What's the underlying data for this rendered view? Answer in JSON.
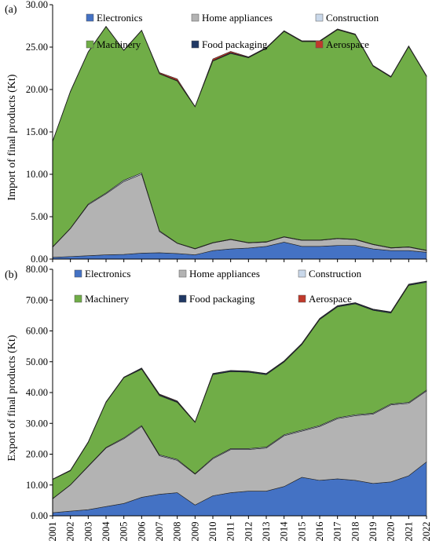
{
  "chart_data": [
    {
      "type": "area",
      "stacked": true,
      "panel_label": "(a)",
      "ylabel": "Import of final products  (Kt)",
      "xlabel": "",
      "ylim": [
        0,
        30
      ],
      "yticks": [
        "0.00",
        "5.00",
        "10.00",
        "15.00",
        "20.00",
        "25.00",
        "30.00"
      ],
      "legend_position": "top",
      "x": [
        2001,
        2002,
        2003,
        2004,
        2005,
        2006,
        2007,
        2008,
        2009,
        2010,
        2011,
        2012,
        2013,
        2014,
        2015,
        2016,
        2017,
        2018,
        2019,
        2020,
        2021,
        2022
      ],
      "series": [
        {
          "name": "Electronics",
          "color": "#4472c4",
          "values": [
            0.2,
            0.3,
            0.4,
            0.5,
            0.55,
            0.7,
            0.75,
            0.65,
            0.5,
            1.0,
            1.2,
            1.3,
            1.5,
            2.0,
            1.5,
            1.5,
            1.6,
            1.6,
            1.2,
            1.0,
            1.0,
            0.8
          ]
        },
        {
          "name": "Home appliances",
          "color": "#b3b3b3",
          "values": [
            1.2,
            3.3,
            6.0,
            7.2,
            8.6,
            9.3,
            2.5,
            1.2,
            0.7,
            0.9,
            1.1,
            0.6,
            0.5,
            0.6,
            0.7,
            0.7,
            0.8,
            0.7,
            0.5,
            0.3,
            0.4,
            0.2
          ]
        },
        {
          "name": "Construction",
          "color": "#c9d8ea",
          "values": [
            0.05,
            0.05,
            0.1,
            0.1,
            0.15,
            0.15,
            0.1,
            0.05,
            0.05,
            0.05,
            0.05,
            0.05,
            0.05,
            0.05,
            0.05,
            0.05,
            0.05,
            0.05,
            0.05,
            0.05,
            0.05,
            0.05
          ]
        },
        {
          "name": "Machinery",
          "color": "#70ad47",
          "values": [
            12.4,
            16.1,
            17.9,
            19.6,
            15.3,
            16.8,
            18.5,
            19.1,
            16.7,
            21.4,
            21.9,
            21.8,
            22.8,
            24.2,
            23.4,
            23.4,
            24.6,
            24.1,
            21.0,
            20.1,
            23.6,
            20.5
          ]
        },
        {
          "name": "Food packaging",
          "color": "#203864",
          "values": [
            0.05,
            0.05,
            0.05,
            0.05,
            0.05,
            0.05,
            0.05,
            0.05,
            0.05,
            0.05,
            0.1,
            0.05,
            0.05,
            0.05,
            0.05,
            0.05,
            0.05,
            0.05,
            0.05,
            0.05,
            0.05,
            0.05
          ]
        },
        {
          "name": "Aerospace",
          "color": "#c0392b",
          "values": [
            0.0,
            0.0,
            0.0,
            0.0,
            0.0,
            0.0,
            0.1,
            0.2,
            0.0,
            0.2,
            0.15,
            0.05,
            0.05,
            0.05,
            0.05,
            0.05,
            0.05,
            0.05,
            0.05,
            0.05,
            0.05,
            0.05
          ]
        }
      ]
    },
    {
      "type": "area",
      "stacked": true,
      "panel_label": "(b)",
      "ylabel": "Export of final products  (Kt)",
      "xlabel": "",
      "ylim": [
        0,
        80
      ],
      "yticks": [
        "0.00",
        "10.00",
        "20.00",
        "30.00",
        "40.00",
        "50.00",
        "60.00",
        "70.00",
        "80.00"
      ],
      "legend_position": "top",
      "x": [
        2001,
        2002,
        2003,
        2004,
        2005,
        2006,
        2007,
        2008,
        2009,
        2010,
        2011,
        2012,
        2013,
        2014,
        2015,
        2016,
        2017,
        2018,
        2019,
        2020,
        2021,
        2022
      ],
      "series": [
        {
          "name": "Electronics",
          "color": "#4472c4",
          "values": [
            1.0,
            1.5,
            2.0,
            3.0,
            4.0,
            6.0,
            7.0,
            7.5,
            3.5,
            6.5,
            7.5,
            8.0,
            8.0,
            9.5,
            12.5,
            11.5,
            12.0,
            11.5,
            10.5,
            11.0,
            13.0,
            17.5
          ]
        },
        {
          "name": "Home appliances",
          "color": "#b3b3b3",
          "values": [
            4.5,
            8.5,
            14.0,
            19.0,
            21.0,
            23.0,
            12.5,
            10.5,
            10.0,
            12.0,
            14.0,
            13.5,
            14.0,
            16.5,
            15.0,
            17.5,
            19.5,
            21.0,
            22.5,
            25.0,
            23.5,
            23.0
          ]
        },
        {
          "name": "Construction",
          "color": "#c9d8ea",
          "values": [
            0.1,
            0.1,
            0.2,
            0.2,
            0.3,
            0.3,
            0.3,
            0.3,
            0.2,
            0.3,
            0.3,
            0.3,
            0.3,
            0.3,
            0.3,
            0.3,
            0.3,
            0.3,
            0.3,
            0.3,
            0.3,
            0.3
          ]
        },
        {
          "name": "Machinery",
          "color": "#70ad47",
          "values": [
            6.2,
            4.5,
            7.6,
            14.6,
            19.5,
            18.3,
            19.2,
            18.5,
            16.6,
            27.0,
            25.0,
            24.8,
            23.5,
            23.6,
            27.8,
            34.4,
            36.0,
            36.0,
            33.4,
            29.5,
            38.0,
            35.0
          ]
        },
        {
          "name": "Food packaging",
          "color": "#203864",
          "values": [
            0.1,
            0.2,
            0.2,
            0.2,
            0.2,
            0.3,
            0.3,
            0.3,
            0.2,
            0.3,
            0.3,
            0.3,
            0.3,
            0.3,
            0.3,
            0.3,
            0.3,
            0.3,
            0.3,
            0.3,
            0.3,
            0.3
          ]
        },
        {
          "name": "Aerospace",
          "color": "#c0392b",
          "values": [
            0.0,
            0.0,
            0.0,
            0.0,
            0.0,
            0.1,
            0.2,
            0.2,
            0.0,
            0.1,
            0.1,
            0.1,
            0.1,
            0.1,
            0.1,
            0.1,
            0.1,
            0.1,
            0.1,
            0.1,
            0.1,
            0.1
          ]
        }
      ]
    }
  ]
}
